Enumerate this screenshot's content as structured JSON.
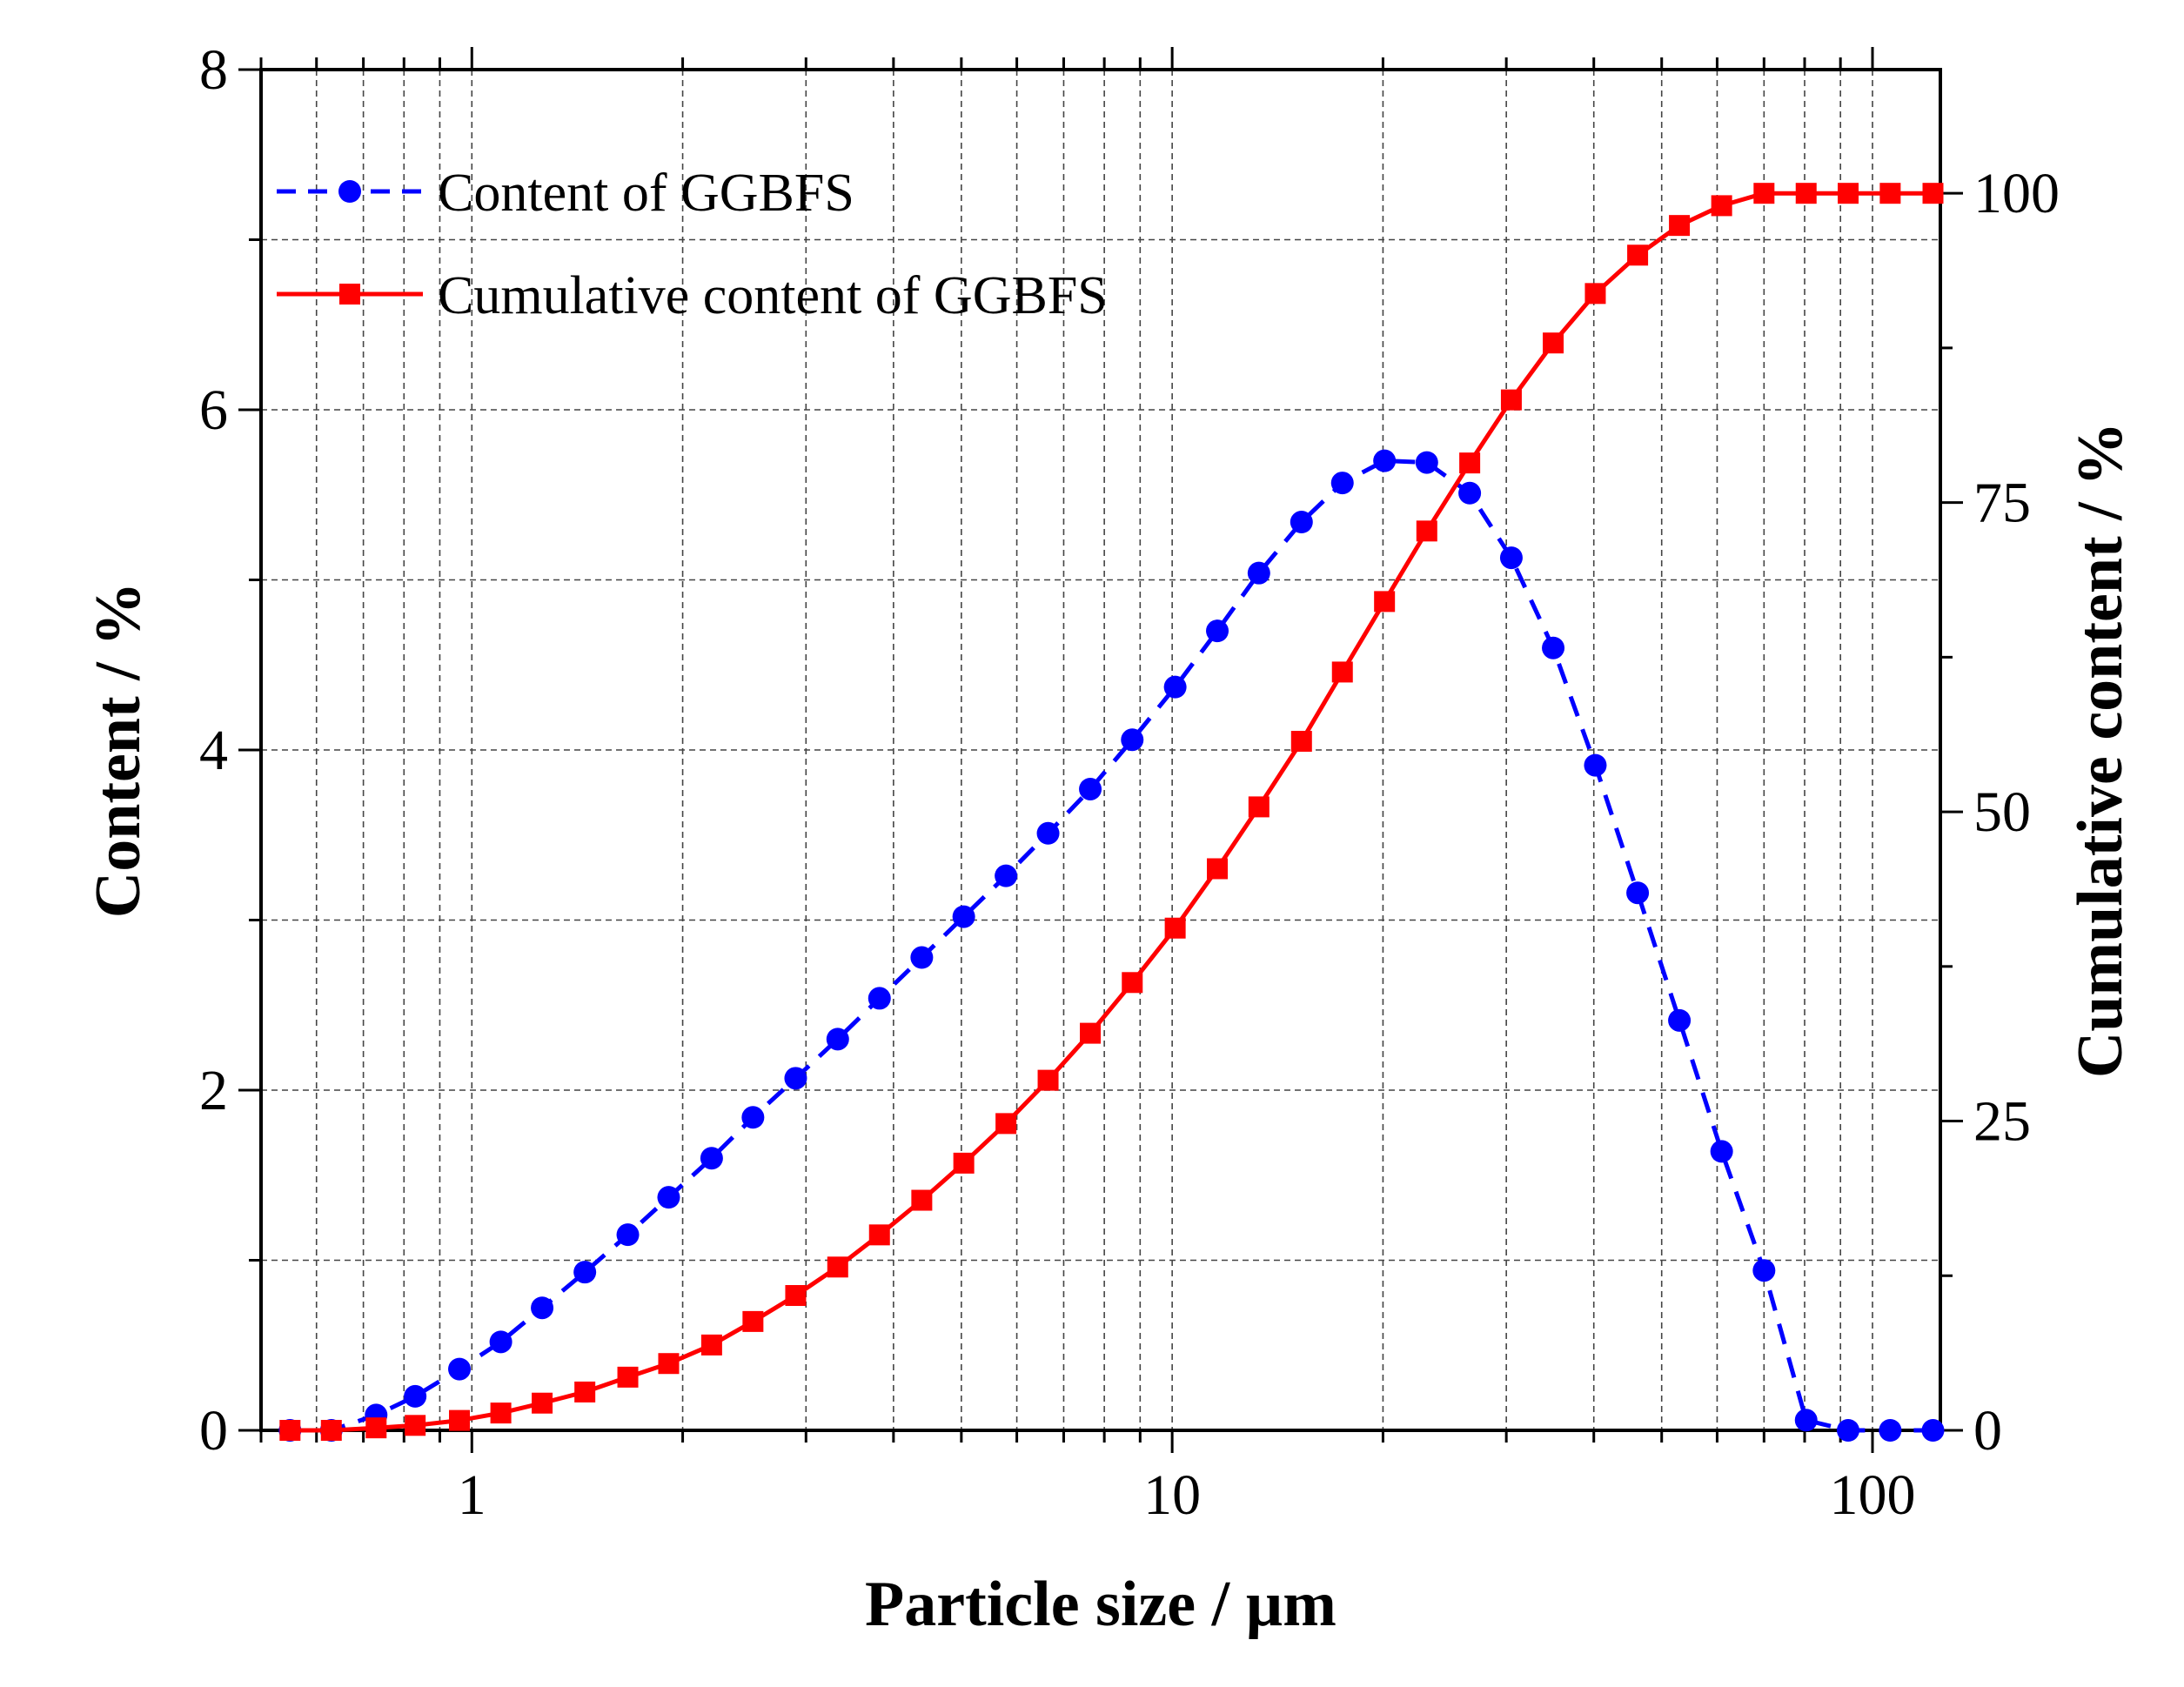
{
  "chart_data": {
    "type": "line",
    "title": "",
    "xlabel": "Particle size / µm",
    "ylabel": "Content / %",
    "y2label": "Cumulative content / %",
    "xscale": "log",
    "xlim": [
      0.5,
      125
    ],
    "ylim": [
      0,
      8
    ],
    "y2lim": [
      0,
      110
    ],
    "x_ticks": [
      1,
      10,
      100
    ],
    "x_tick_labels": [
      "1",
      "10",
      "100"
    ],
    "y_ticks": [
      0,
      2,
      4,
      6,
      8
    ],
    "y_tick_labels": [
      "0",
      "2",
      "4",
      "6",
      "8"
    ],
    "y2_ticks": [
      0,
      25,
      50,
      75,
      100
    ],
    "y2_tick_labels": [
      "0",
      "25",
      "50",
      "75",
      "100"
    ],
    "grid": true,
    "legend_position": "top-left",
    "x": [
      0.55,
      0.63,
      0.73,
      0.83,
      0.96,
      1.1,
      1.26,
      1.45,
      1.67,
      1.91,
      2.2,
      2.52,
      2.9,
      3.33,
      3.82,
      4.39,
      5.04,
      5.79,
      6.65,
      7.64,
      8.77,
      10.1,
      11.6,
      13.3,
      15.3,
      17.5,
      20.1,
      23.1,
      26.6,
      30.5,
      35.0,
      40.2,
      46.2,
      53.0,
      60.9,
      70.0,
      80.4,
      92.3,
      106.0,
      122.0
    ],
    "series": [
      {
        "name": "Content of GGBFS",
        "axis": "left",
        "color": "#0000ff",
        "line": "dashed",
        "marker": "circle",
        "values": [
          0,
          0,
          0.09,
          0.2,
          0.36,
          0.52,
          0.72,
          0.93,
          1.15,
          1.37,
          1.6,
          1.84,
          2.07,
          2.3,
          2.54,
          2.78,
          3.02,
          3.26,
          3.51,
          3.77,
          4.06,
          4.37,
          4.7,
          5.04,
          5.34,
          5.57,
          5.7,
          5.69,
          5.51,
          5.13,
          4.6,
          3.91,
          3.16,
          2.41,
          1.64,
          0.94,
          0.06,
          0,
          0,
          0
        ]
      },
      {
        "name": "Cumulative content of GGBFS",
        "axis": "right",
        "color": "#ff0000",
        "line": "solid",
        "marker": "square",
        "values": [
          0,
          0,
          0.2,
          0.4,
          0.8,
          1.4,
          2.2,
          3.1,
          4.3,
          5.4,
          6.9,
          8.8,
          10.9,
          13.2,
          15.8,
          18.6,
          21.6,
          24.8,
          28.3,
          32.1,
          36.2,
          40.6,
          45.4,
          50.4,
          55.7,
          61.3,
          67.0,
          72.7,
          78.2,
          83.3,
          87.9,
          91.9,
          95.0,
          97.4,
          99.0,
          100,
          100,
          100,
          100,
          100
        ]
      }
    ]
  }
}
